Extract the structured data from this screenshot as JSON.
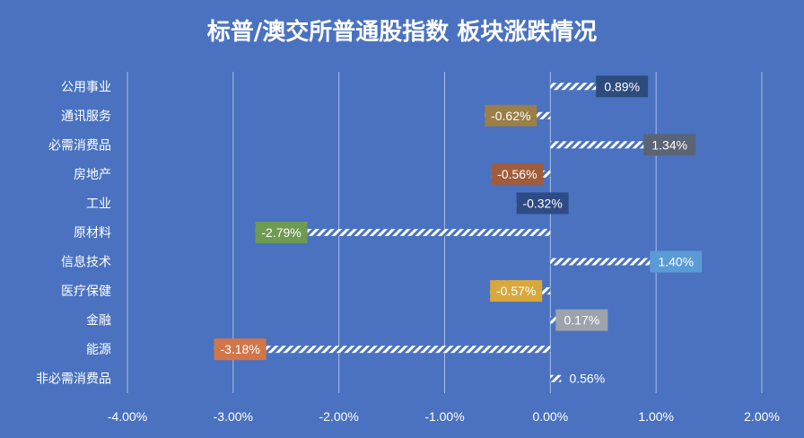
{
  "chart_data": {
    "type": "bar",
    "orientation": "horizontal",
    "title": "标普/澳交所普通股指数 板块涨跌情况",
    "categories": [
      "公用事业",
      "通讯服务",
      "必需消费品",
      "房地产",
      "工业",
      "原材料",
      "信息技术",
      "医疗保健",
      "金融",
      "能源",
      "非必需消费品"
    ],
    "values": [
      0.89,
      -0.62,
      1.34,
      -0.56,
      -0.32,
      -2.79,
      1.4,
      -0.57,
      0.17,
      -3.18,
      0.56
    ],
    "value_labels": [
      "0.89%",
      "-0.62%",
      "1.34%",
      "-0.56%",
      "-0.32%",
      "-2.79%",
      "1.40%",
      "-0.57%",
      "0.17%",
      "-3.18%",
      "0.56%"
    ],
    "xlim": [
      -4,
      2
    ],
    "x_ticks": [
      -4,
      -3,
      -2,
      -1,
      0,
      1,
      2
    ],
    "x_tick_labels": [
      "-4.00%",
      "-3.00%",
      "-2.00%",
      "-1.00%",
      "0.00%",
      "1.00%",
      "2.00%"
    ],
    "grid": true,
    "legend": "none",
    "label_colors": [
      "#2c4c7c",
      "#9a7f47",
      "#5b6475",
      "#a15c3c",
      "#2e4b86",
      "#6f9a52",
      "#5a9bd5",
      "#d8a83c",
      "#9da3ad",
      "#d2764a",
      "#4a72c0"
    ],
    "background_color": "#4a72c0"
  }
}
